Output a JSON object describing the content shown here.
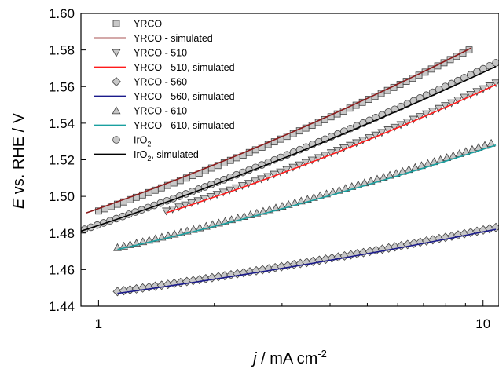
{
  "chart_data": {
    "type": "scatter",
    "xlabel": "j / mA cm-2",
    "ylabel": "E vs. RHE / V",
    "x_scale": "log",
    "xlim": [
      0.9,
      11
    ],
    "ylim": [
      1.44,
      1.6
    ],
    "x_ticks": [
      "1",
      "10"
    ],
    "y_ticks": [
      "1.44",
      "1.46",
      "1.48",
      "1.50",
      "1.52",
      "1.54",
      "1.56",
      "1.58",
      "1.60"
    ],
    "grid": false,
    "legend_position": "top-left",
    "series": [
      {
        "name": "YRCO",
        "kind": "markers",
        "marker": "square",
        "fill": "#c8c8c8",
        "x_range": [
          1.0,
          9.2
        ],
        "y_range": [
          1.492,
          1.58
        ]
      },
      {
        "name": "YRCO - simulated",
        "kind": "line",
        "color": "#8b1a1a",
        "x_range": [
          0.93,
          9.3
        ],
        "y_range": [
          1.491,
          1.581
        ]
      },
      {
        "name": "YRCO - 510",
        "kind": "markers",
        "marker": "triangle-down",
        "fill": "#c8c8c8",
        "x_range": [
          1.5,
          10.8
        ],
        "y_range": [
          1.492,
          1.562
        ]
      },
      {
        "name": "YRCO - 510, simulated",
        "kind": "line",
        "color": "#ff1a1a",
        "x_range": [
          1.5,
          10.8
        ],
        "y_range": [
          1.491,
          1.561
        ]
      },
      {
        "name": "YRCO - 560",
        "kind": "markers",
        "marker": "diamond",
        "fill": "#c8c8c8",
        "x_range": [
          1.12,
          10.8
        ],
        "y_range": [
          1.448,
          1.483
        ]
      },
      {
        "name": "YRCO - 560, simulated",
        "kind": "line",
        "color": "#1a1a8b",
        "x_range": [
          1.12,
          10.8
        ],
        "y_range": [
          1.447,
          1.482
        ]
      },
      {
        "name": "YRCO - 610",
        "kind": "markers",
        "marker": "triangle-up",
        "fill": "#c8c8c8",
        "x_range": [
          1.12,
          10.5
        ],
        "y_range": [
          1.472,
          1.529
        ]
      },
      {
        "name": "YRCO - 610, simulated",
        "kind": "line",
        "color": "#1aa0a0",
        "x_range": [
          1.12,
          10.8
        ],
        "y_range": [
          1.471,
          1.528
        ]
      },
      {
        "name": "IrO2",
        "kind": "markers",
        "marker": "circle",
        "fill": "#c8c8c8",
        "x_range": [
          0.92,
          10.8
        ],
        "y_range": [
          1.482,
          1.573
        ]
      },
      {
        "name": "IrO2, simulated",
        "kind": "line",
        "color": "#000000",
        "x_range": [
          0.9,
          10.8
        ],
        "y_range": [
          1.481,
          1.571
        ]
      }
    ]
  }
}
